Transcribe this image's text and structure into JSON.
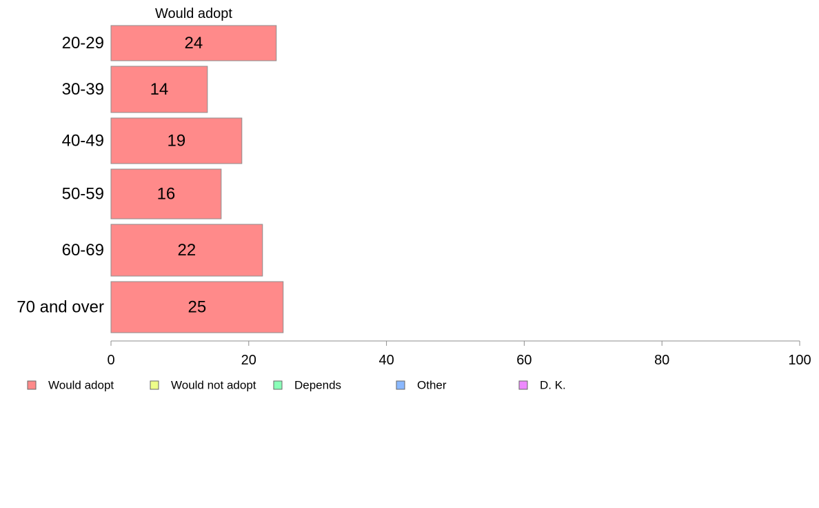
{
  "chart_data": {
    "type": "bar",
    "orientation": "horizontal",
    "title": "Would adopt",
    "categories": [
      "20-29",
      "30-39",
      "40-49",
      "50-59",
      "60-69",
      "70 and over"
    ],
    "series": [
      {
        "name": "Would adopt",
        "color": "#FF8A8A",
        "values": [
          24,
          14,
          19,
          16,
          22,
          25
        ],
        "value_labels": [
          "24",
          "14",
          "19",
          "16",
          "22",
          "25"
        ]
      }
    ],
    "xlim": [
      0,
      100
    ],
    "xticks": [
      0,
      20,
      40,
      60,
      80,
      100
    ],
    "xtick_labels": [
      "0",
      "20",
      "40",
      "60",
      "80",
      "100"
    ],
    "grid": false,
    "legend": {
      "placement": "bottom",
      "items": [
        {
          "label": "Would adopt",
          "color": "#FF8A8A"
        },
        {
          "label": "Would not adopt",
          "color": "#EEFF8A"
        },
        {
          "label": "Depends",
          "color": "#8AFFB8"
        },
        {
          "label": "Other",
          "color": "#8AB8FF"
        },
        {
          "label": "D. K.",
          "color": "#EE8AFF"
        }
      ]
    }
  }
}
